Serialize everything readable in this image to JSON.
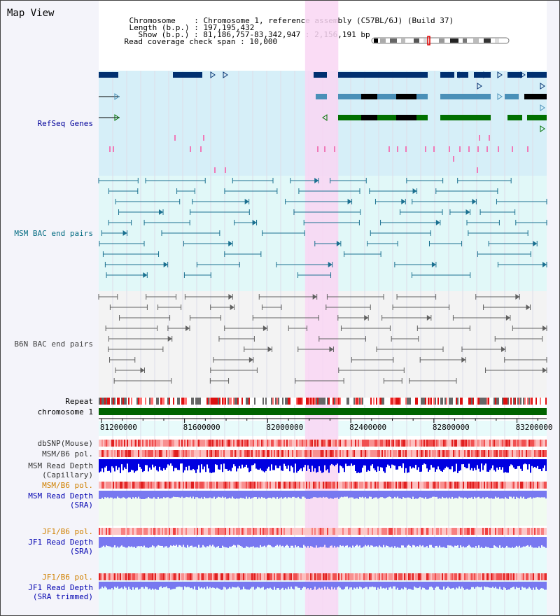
{
  "title": "Map View",
  "info": {
    "chromosome_key": "Chromosome",
    "chromosome_value": "Chromosome 1, reference assembly (C57BL/6J) (Build 37)",
    "length_key": "Length (b.p.)",
    "length_value": "197,195,432",
    "show_key": "Show (b.p.)",
    "show_value": "81,186,757-83,342,947 : 2,156,191 bp",
    "coverage_key": "Read coverage check span",
    "coverage_value": "10,000"
  },
  "tracks": [
    {
      "label": "RefSeq Genes",
      "color": "#00009a"
    },
    {
      "label": "MSM BAC end pairs",
      "color": "#006a80"
    },
    {
      "label": "B6N BAC end pairs",
      "color": "#404040"
    },
    {
      "label": "Repeat",
      "color": "#000000"
    },
    {
      "label": "chromosome 1",
      "color": "#000000"
    },
    {
      "label": "dbSNP(Mouse)",
      "color": "#333333"
    },
    {
      "label": "MSM/B6 pol.",
      "color": "#333333"
    },
    {
      "label": "MSM Read Depth",
      "color": "#333333"
    },
    {
      "label": "(Capillary)",
      "color": "#333333"
    },
    {
      "label": "MSM/B6 pol.",
      "color": "#d08000"
    },
    {
      "label": "MSM Read Depth",
      "color": "#0000b0"
    },
    {
      "label": "(SRA)",
      "color": "#0000b0"
    },
    {
      "label": "JF1/B6 pol.",
      "color": "#d08000"
    },
    {
      "label": "JF1 Read Depth",
      "color": "#0000b0"
    },
    {
      "label": "(SRA)",
      "color": "#0000b0"
    },
    {
      "label": "JF1/B6 pol.",
      "color": "#d08000"
    },
    {
      "label": "JF1 Read Depth",
      "color": "#0000b0"
    },
    {
      "label": "(SRA trimmed)",
      "color": "#0000b0"
    }
  ],
  "axis": {
    "start": 81186757,
    "end": 83342947,
    "ticks": [
      "81200000",
      "81600000",
      "82000000",
      "82400000",
      "82800000",
      "83200000"
    ],
    "tick_values": [
      81200000,
      81600000,
      82000000,
      82400000,
      82800000,
      83200000
    ]
  },
  "highlight": {
    "start": 82180000,
    "end": 82340000,
    "color": "#f9d6f3"
  },
  "colors": {
    "gene_dark": "#003070",
    "gene_mid": "#4a90b8",
    "gene_green": "#007000",
    "msm_bac": "#1a7090",
    "b6n_bac": "#606060",
    "chromosome_bar": "#006400",
    "snp_red": "#e83030",
    "depth_blue": "#0000e0",
    "depth_light": "#7878f0"
  }
}
